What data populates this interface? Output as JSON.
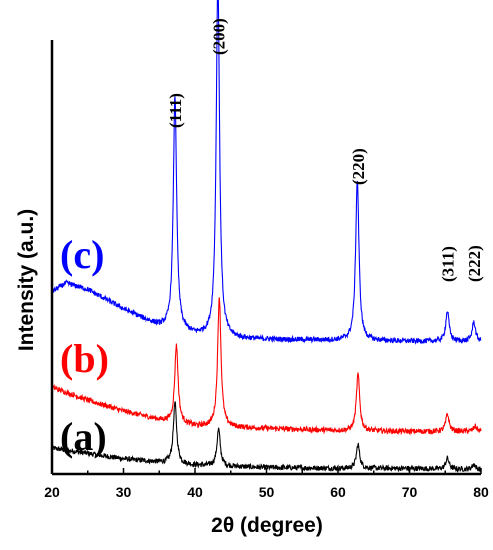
{
  "chart_data": {
    "type": "line",
    "xlabel": "2θ (degree)",
    "ylabel": "Intensity (a.u.)",
    "xlim": [
      20,
      80
    ],
    "x_ticks": [
      "20",
      "30",
      "40",
      "50",
      "60",
      "70",
      "80"
    ],
    "y_ticks_shown": false,
    "grid": false,
    "peak_annotations": [
      {
        "label": "(111)",
        "x": 37.2
      },
      {
        "label": "(200)",
        "x": 43.3
      },
      {
        "label": "(220)",
        "x": 62.8
      },
      {
        "label": "(311)",
        "x": 75.3
      },
      {
        "label": "(222)",
        "x": 79.0
      }
    ],
    "series": [
      {
        "name": "(a)",
        "color": "#000000",
        "baseline": [
          [
            20,
            0.06
          ],
          [
            30,
            0.035
          ],
          [
            40,
            0.02
          ],
          [
            50,
            0.015
          ],
          [
            60,
            0.013
          ],
          [
            70,
            0.013
          ],
          [
            80,
            0.01
          ]
        ],
        "peaks": [
          [
            37.2,
            0.14
          ],
          [
            43.3,
            0.085
          ],
          [
            62.8,
            0.055
          ],
          [
            75.3,
            0.025
          ],
          [
            79.0,
            0.012
          ]
        ]
      },
      {
        "name": "(b)",
        "color": "#ff0000",
        "baseline": [
          [
            20,
            0.2
          ],
          [
            25,
            0.17
          ],
          [
            30,
            0.145
          ],
          [
            35,
            0.125
          ],
          [
            40,
            0.11
          ],
          [
            50,
            0.105
          ],
          [
            60,
            0.1
          ],
          [
            70,
            0.098
          ],
          [
            80,
            0.098
          ]
        ],
        "peaks": [
          [
            37.4,
            0.18
          ],
          [
            43.4,
            0.3
          ],
          [
            62.8,
            0.13
          ],
          [
            75.3,
            0.04
          ],
          [
            79.2,
            0.012
          ]
        ]
      },
      {
        "name": "(c)",
        "color": "#0000ff",
        "baseline": [
          [
            20,
            0.42
          ],
          [
            22,
            0.44
          ],
          [
            25,
            0.425
          ],
          [
            30,
            0.38
          ],
          [
            35,
            0.34
          ],
          [
            40,
            0.32
          ],
          [
            45,
            0.312
          ],
          [
            50,
            0.31
          ],
          [
            60,
            0.308
          ],
          [
            70,
            0.306
          ],
          [
            80,
            0.305
          ]
        ],
        "peaks": [
          [
            37.2,
            0.54
          ],
          [
            43.2,
            0.83
          ],
          [
            62.7,
            0.37
          ],
          [
            75.3,
            0.07
          ],
          [
            79.0,
            0.045
          ]
        ]
      }
    ]
  }
}
